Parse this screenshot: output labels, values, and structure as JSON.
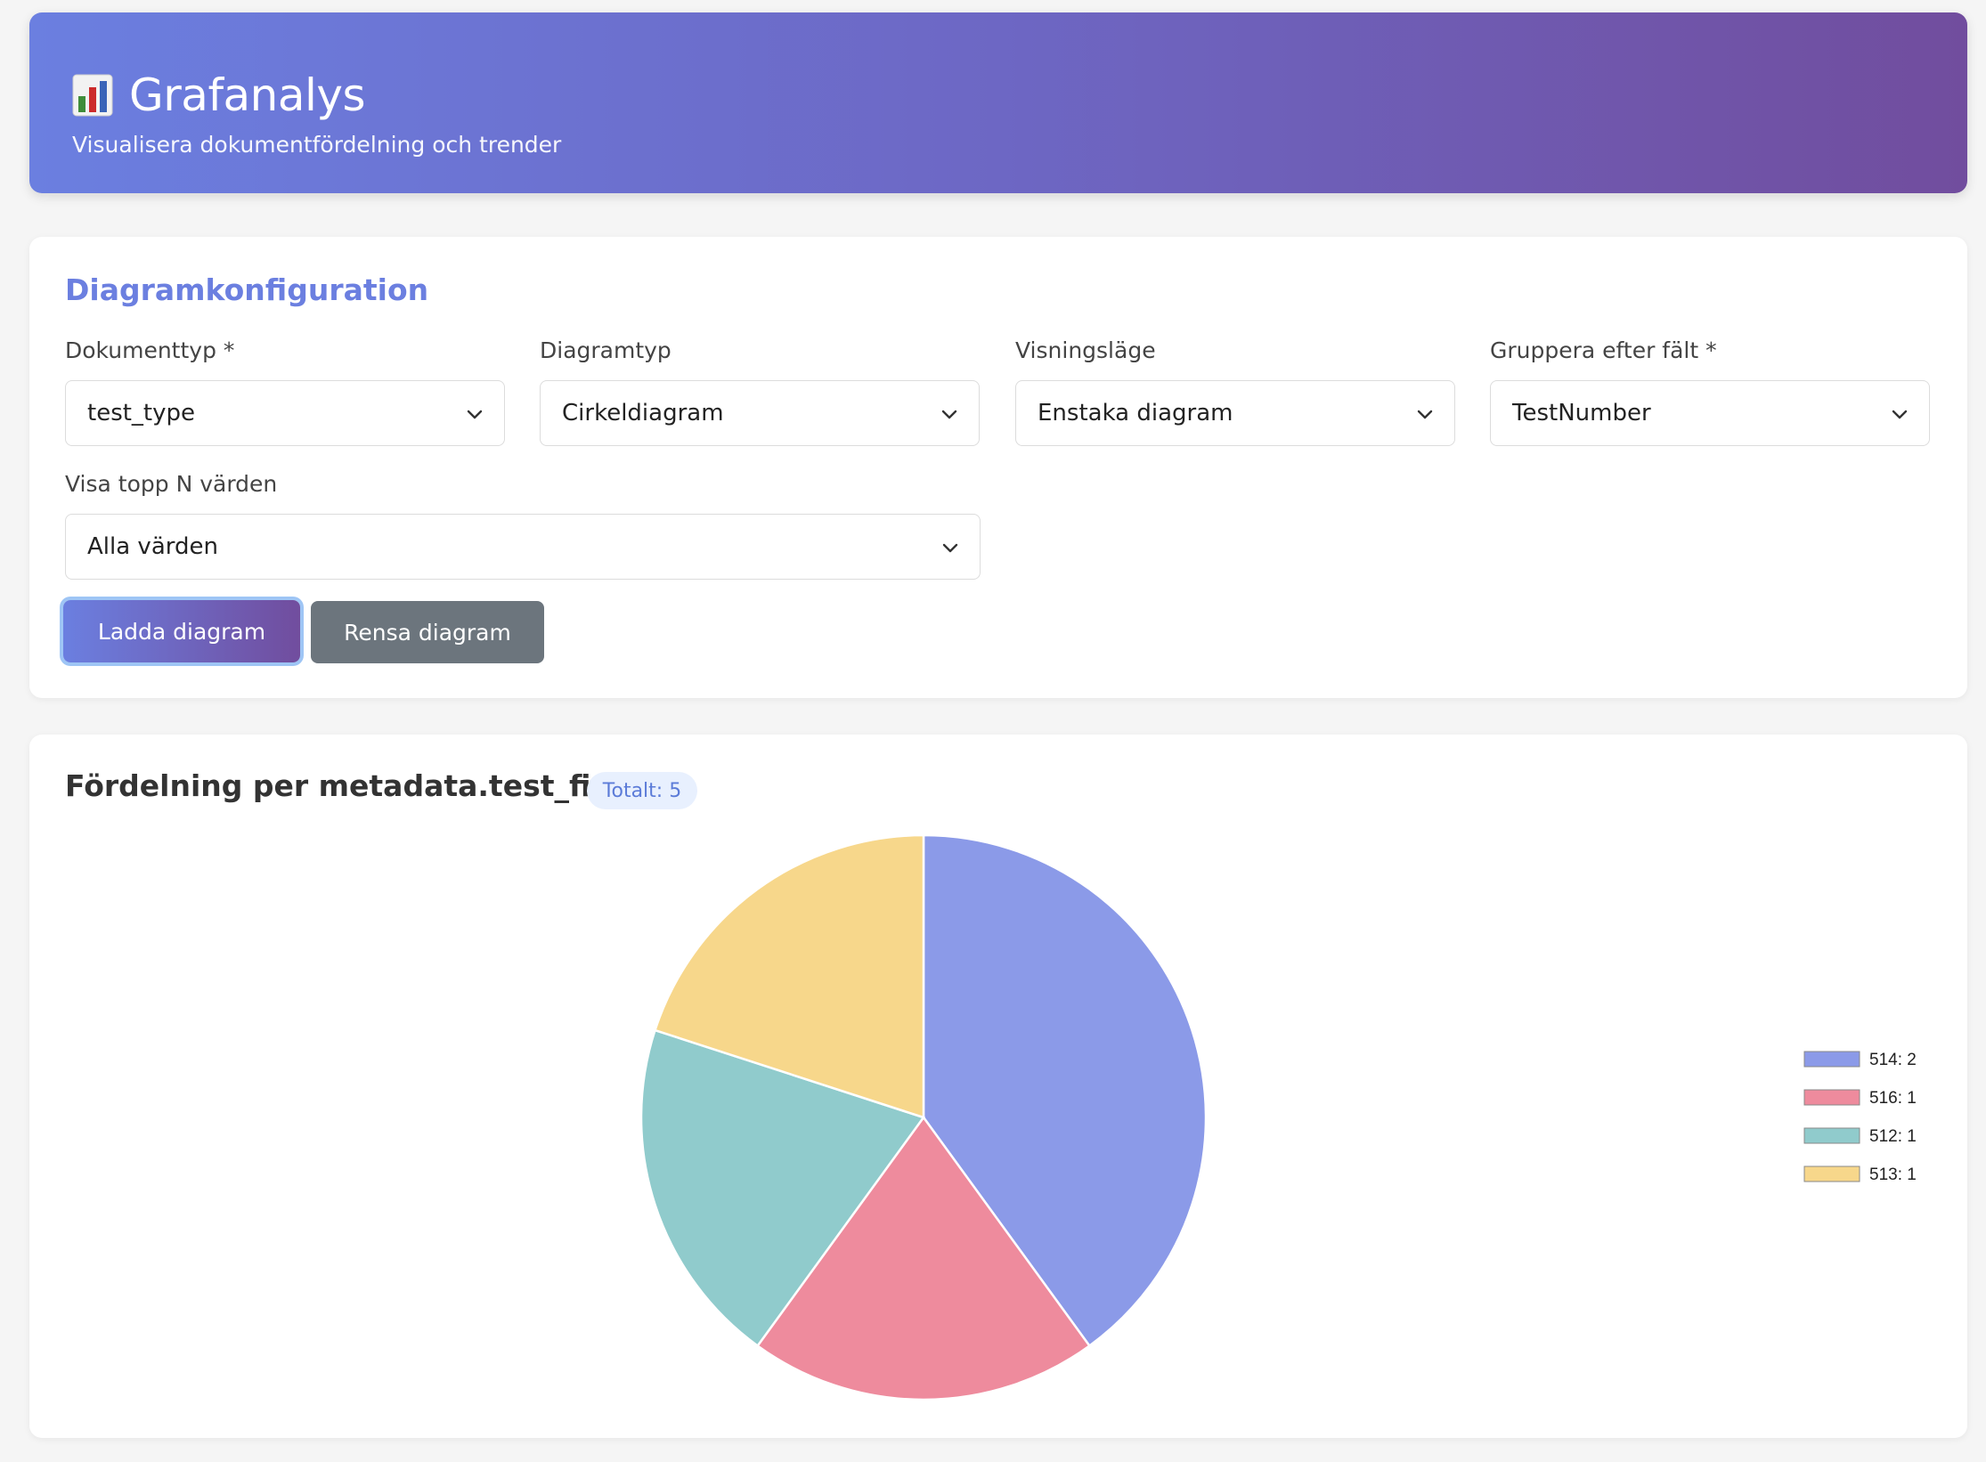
{
  "header": {
    "title": "Grafanalys",
    "subtitle": "Visualisera dokumentfördelning och trender",
    "icon": "bar-chart-icon"
  },
  "config": {
    "title": "Diagramkonfiguration",
    "fields": {
      "doc_type": {
        "label": "Dokumenttyp *",
        "value": "test_type"
      },
      "chart_type": {
        "label": "Diagramtyp",
        "value": "Cirkeldiagram"
      },
      "view_mode": {
        "label": "Visningsläge",
        "value": "Enstaka diagram"
      },
      "group_by": {
        "label": "Gruppera efter fält *",
        "value": "TestNumber"
      },
      "top_n": {
        "label": "Visa topp N värden",
        "value": "Alla värden"
      }
    },
    "load_button": "Ladda diagram",
    "clear_button": "Rensa diagram"
  },
  "result": {
    "title": "Fördelning per metadata.test_field",
    "total_badge": "Totalt: 5"
  },
  "chart_data": {
    "type": "pie",
    "title": "",
    "categories": [
      "514",
      "516",
      "512",
      "513"
    ],
    "values": [
      2,
      1,
      1,
      1
    ],
    "legend_labels": [
      "514: 2",
      "516: 1",
      "512: 1",
      "513: 1"
    ],
    "colors": [
      "#8b9ae8",
      "#ee8b9d",
      "#90cbcc",
      "#f7d78b"
    ],
    "legend": "right"
  }
}
